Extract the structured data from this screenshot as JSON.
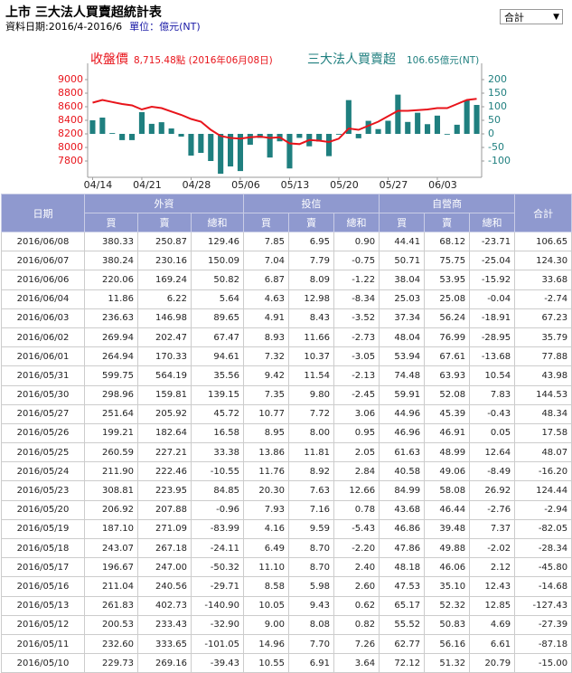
{
  "header": {
    "title": "上市 三大法人買賣超統計表",
    "date": "資料日期:2016/4-2016/6",
    "unit": "單位：億元(NT)",
    "selector": "合計"
  },
  "chart_data": {
    "type": "combo",
    "categories": [
      "04/14",
      null,
      null,
      null,
      null,
      "04/21",
      null,
      null,
      null,
      null,
      "04/28",
      null,
      null,
      null,
      null,
      "05/06",
      null,
      null,
      null,
      null,
      "05/13",
      null,
      null,
      null,
      null,
      "05/20",
      null,
      null,
      null,
      null,
      "05/27",
      null,
      null,
      null,
      null,
      "06/03",
      null,
      null,
      null,
      null
    ],
    "series": [
      {
        "name": "收盤價",
        "note": "8,715.48點 (2016年06月08日)",
        "type": "line",
        "axis": "y",
        "color": "#e8141b",
        "values": [
          8660,
          8700,
          8670,
          8640,
          8620,
          8560,
          8600,
          8580,
          8530,
          8480,
          8420,
          8380,
          8260,
          8170,
          8140,
          8130,
          8150,
          8160,
          8140,
          8150,
          8060,
          8050,
          8110,
          8100,
          8080,
          8130,
          8280,
          8260,
          8320,
          8380,
          8460,
          8540,
          8540,
          8550,
          8560,
          8580,
          8580,
          8640,
          8700,
          8715.48
        ]
      },
      {
        "name": "三大法人買賣超",
        "note": "106.65億元(NT)",
        "type": "bar",
        "axis": "y2",
        "color": "#1f7f7f",
        "values": [
          50,
          60,
          3,
          -23,
          -23,
          80,
          37,
          43,
          20,
          -10,
          -80,
          -70,
          -100,
          -147,
          -120,
          -137,
          -40,
          -15.0,
          -87.18,
          -27.39,
          -127.43,
          -14.68,
          -45.8,
          -28.34,
          -82.05,
          -2.94,
          124.44,
          -16.2,
          48.07,
          17.58,
          48.34,
          144.53,
          43.98,
          77.88,
          35.79,
          67.23,
          -2.74,
          33.68,
          124.3,
          106.65
        ]
      }
    ],
    "ylim": [
      7560,
      9160
    ],
    "yticks": [
      7800,
      8000,
      8200,
      8400,
      8600,
      8800,
      9000
    ],
    "y2lim": [
      -160,
      240
    ],
    "y2ticks": [
      -100,
      -50,
      0,
      50,
      100,
      150,
      200
    ],
    "grid": false
  },
  "table": {
    "date_header": "日期",
    "total_header": "合計",
    "groups": [
      {
        "name": "外資",
        "columns": [
          "買",
          "賣",
          "總和"
        ]
      },
      {
        "name": "投信",
        "columns": [
          "買",
          "賣",
          "總和"
        ]
      },
      {
        "name": "自營商",
        "columns": [
          "買",
          "賣",
          "總和"
        ]
      }
    ],
    "rows": [
      [
        "2016/06/08",
        "380.33",
        "250.87",
        "129.46",
        "7.85",
        "6.95",
        "0.90",
        "44.41",
        "68.12",
        "-23.71",
        "106.65"
      ],
      [
        "2016/06/07",
        "380.24",
        "230.16",
        "150.09",
        "7.04",
        "7.79",
        "-0.75",
        "50.71",
        "75.75",
        "-25.04",
        "124.30"
      ],
      [
        "2016/06/06",
        "220.06",
        "169.24",
        "50.82",
        "6.87",
        "8.09",
        "-1.22",
        "38.04",
        "53.95",
        "-15.92",
        "33.68"
      ],
      [
        "2016/06/04",
        "11.86",
        "6.22",
        "5.64",
        "4.63",
        "12.98",
        "-8.34",
        "25.03",
        "25.08",
        "-0.04",
        "-2.74"
      ],
      [
        "2016/06/03",
        "236.63",
        "146.98",
        "89.65",
        "4.91",
        "8.43",
        "-3.52",
        "37.34",
        "56.24",
        "-18.91",
        "67.23"
      ],
      [
        "2016/06/02",
        "269.94",
        "202.47",
        "67.47",
        "8.93",
        "11.66",
        "-2.73",
        "48.04",
        "76.99",
        "-28.95",
        "35.79"
      ],
      [
        "2016/06/01",
        "264.94",
        "170.33",
        "94.61",
        "7.32",
        "10.37",
        "-3.05",
        "53.94",
        "67.61",
        "-13.68",
        "77.88"
      ],
      [
        "2016/05/31",
        "599.75",
        "564.19",
        "35.56",
        "9.42",
        "11.54",
        "-2.13",
        "74.48",
        "63.93",
        "10.54",
        "43.98"
      ],
      [
        "2016/05/30",
        "298.96",
        "159.81",
        "139.15",
        "7.35",
        "9.80",
        "-2.45",
        "59.91",
        "52.08",
        "7.83",
        "144.53"
      ],
      [
        "2016/05/27",
        "251.64",
        "205.92",
        "45.72",
        "10.77",
        "7.72",
        "3.06",
        "44.96",
        "45.39",
        "-0.43",
        "48.34"
      ],
      [
        "2016/05/26",
        "199.21",
        "182.64",
        "16.58",
        "8.95",
        "8.00",
        "0.95",
        "46.96",
        "46.91",
        "0.05",
        "17.58"
      ],
      [
        "2016/05/25",
        "260.59",
        "227.21",
        "33.38",
        "13.86",
        "11.81",
        "2.05",
        "61.63",
        "48.99",
        "12.64",
        "48.07"
      ],
      [
        "2016/05/24",
        "211.90",
        "222.46",
        "-10.55",
        "11.76",
        "8.92",
        "2.84",
        "40.58",
        "49.06",
        "-8.49",
        "-16.20"
      ],
      [
        "2016/05/23",
        "308.81",
        "223.95",
        "84.85",
        "20.30",
        "7.63",
        "12.66",
        "84.99",
        "58.08",
        "26.92",
        "124.44"
      ],
      [
        "2016/05/20",
        "206.92",
        "207.88",
        "-0.96",
        "7.93",
        "7.16",
        "0.78",
        "43.68",
        "46.44",
        "-2.76",
        "-2.94"
      ],
      [
        "2016/05/19",
        "187.10",
        "271.09",
        "-83.99",
        "4.16",
        "9.59",
        "-5.43",
        "46.86",
        "39.48",
        "7.37",
        "-82.05"
      ],
      [
        "2016/05/18",
        "243.07",
        "267.18",
        "-24.11",
        "6.49",
        "8.70",
        "-2.20",
        "47.86",
        "49.88",
        "-2.02",
        "-28.34"
      ],
      [
        "2016/05/17",
        "196.67",
        "247.00",
        "-50.32",
        "11.10",
        "8.70",
        "2.40",
        "48.18",
        "46.06",
        "2.12",
        "-45.80"
      ],
      [
        "2016/05/16",
        "211.04",
        "240.56",
        "-29.71",
        "8.58",
        "5.98",
        "2.60",
        "47.53",
        "35.10",
        "12.43",
        "-14.68"
      ],
      [
        "2016/05/13",
        "261.83",
        "402.73",
        "-140.90",
        "10.05",
        "9.43",
        "0.62",
        "65.17",
        "52.32",
        "12.85",
        "-127.43"
      ],
      [
        "2016/05/12",
        "200.53",
        "233.43",
        "-32.90",
        "9.00",
        "8.08",
        "0.82",
        "55.52",
        "50.83",
        "4.69",
        "-27.39"
      ],
      [
        "2016/05/11",
        "232.60",
        "333.65",
        "-101.05",
        "14.96",
        "7.70",
        "7.26",
        "62.77",
        "56.16",
        "6.61",
        "-87.18"
      ],
      [
        "2016/05/10",
        "229.73",
        "269.16",
        "-39.43",
        "10.55",
        "6.91",
        "3.64",
        "72.12",
        "51.32",
        "20.79",
        "-15.00"
      ]
    ]
  }
}
